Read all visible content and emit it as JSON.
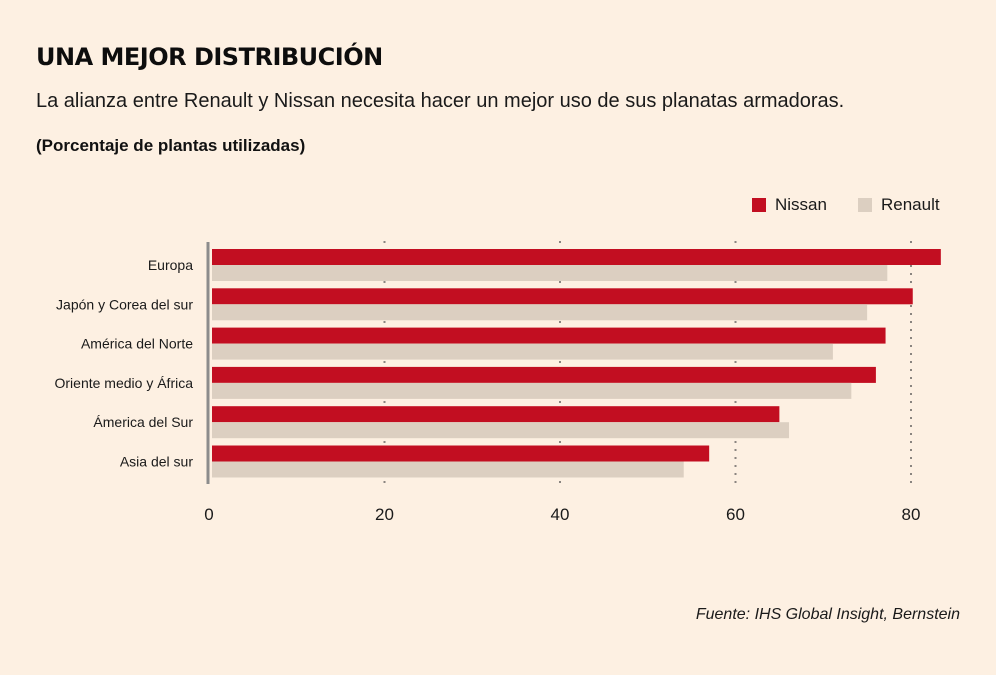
{
  "header": {
    "title": "UNA MEJOR DISTRIBUCIÓN",
    "subtitle": "La alianza entre Renault y Nissan necesita hacer un mejor uso de sus planatas armadoras.",
    "unit_label": "(Porcentaje de plantas utilizadas)"
  },
  "legend": {
    "items": [
      {
        "label": "Nissan",
        "color": "#c20e21"
      },
      {
        "label": "Renault",
        "color": "#dccfc1"
      }
    ]
  },
  "footer": {
    "source": "Fuente: IHS Global Insight, Bernstein"
  },
  "chart_data": {
    "type": "bar",
    "orientation": "horizontal",
    "title": "UNA MEJOR DISTRIBUCIÓN",
    "subtitle": "La alianza entre Renault y Nissan necesita hacer un mejor uso de sus planatas armadoras.",
    "xlabel": "",
    "ylabel": "(Porcentaje de plantas utilizadas)",
    "categories": [
      "Europa",
      "Japón y Corea del sur",
      "América del Norte",
      "Oriente medio y África",
      "Ámerica del Sur",
      "Asia del sur"
    ],
    "series": [
      {
        "name": "Nissan",
        "color": "#c20e21",
        "values": [
          83.4,
          80.2,
          77.1,
          76.0,
          65.0,
          57.0
        ]
      },
      {
        "name": "Renault",
        "color": "#dccfc1",
        "values": [
          77.3,
          75.0,
          71.1,
          73.2,
          66.1,
          54.1
        ]
      }
    ],
    "xlim": [
      0,
      80
    ],
    "xticks": [
      0,
      20,
      40,
      60,
      80
    ],
    "xtick_labels": [
      "0",
      "20",
      "40",
      "60",
      "80"
    ],
    "grid": "vertical dotted",
    "legend_position": "top-right",
    "source": "Fuente: IHS Global Insight, Bernstein"
  }
}
